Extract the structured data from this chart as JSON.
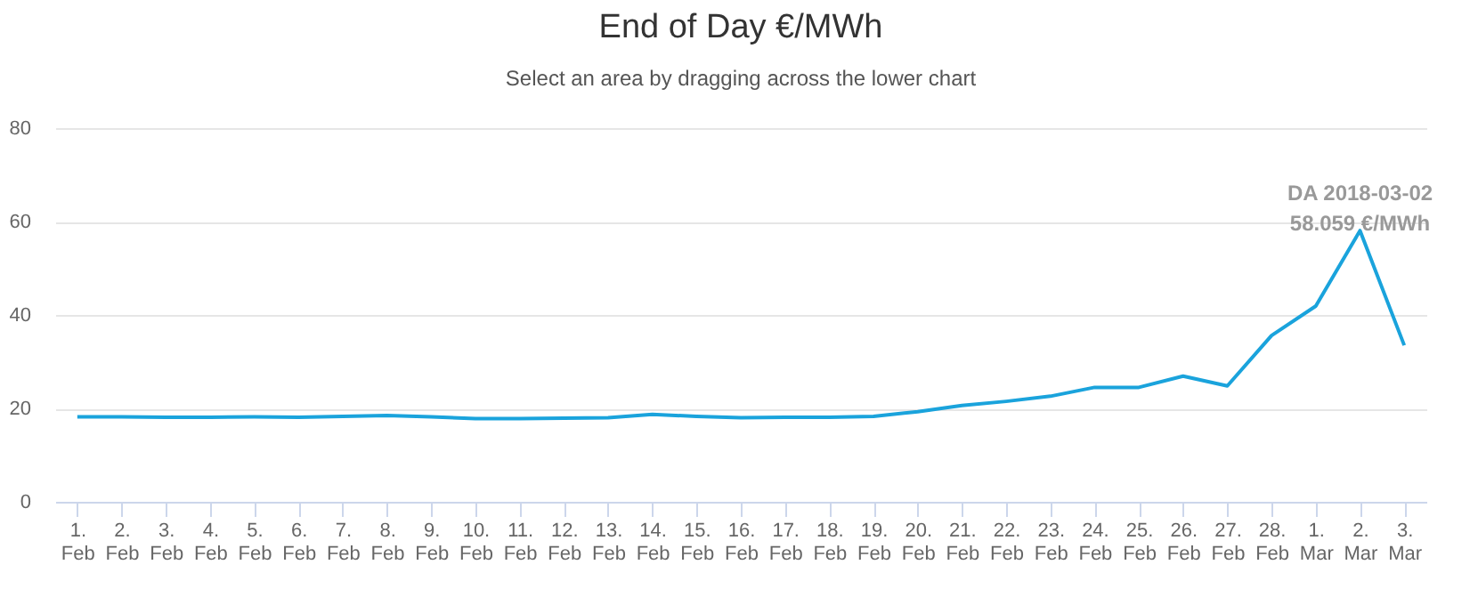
{
  "chart_data": {
    "type": "line",
    "title": "End of Day €/MWh",
    "subtitle": "Select an area by dragging across the lower chart",
    "categories": [
      "1. Feb",
      "2. Feb",
      "3. Feb",
      "4. Feb",
      "5. Feb",
      "6. Feb",
      "7. Feb",
      "8. Feb",
      "9. Feb",
      "10. Feb",
      "11. Feb",
      "12. Feb",
      "13. Feb",
      "14. Feb",
      "15. Feb",
      "16. Feb",
      "17. Feb",
      "18. Feb",
      "19. Feb",
      "20. Feb",
      "21. Feb",
      "22. Feb",
      "23. Feb",
      "24. Feb",
      "25. Feb",
      "26. Feb",
      "27. Feb",
      "28. Feb",
      "1. Mar",
      "2. Mar",
      "3. Mar"
    ],
    "series": [
      {
        "color": "#1aa3dc",
        "values": [
          18.2,
          18.2,
          18.1,
          18.1,
          18.2,
          18.1,
          18.3,
          18.5,
          18.2,
          17.8,
          17.8,
          17.9,
          18.0,
          18.7,
          18.3,
          18.0,
          18.1,
          18.1,
          18.3,
          19.3,
          20.6,
          21.5,
          22.6,
          24.5,
          24.5,
          26.9,
          24.8,
          35.6,
          41.9,
          58.059,
          33.5
        ]
      }
    ],
    "ylim": [
      0,
      80
    ],
    "yticks": [
      0,
      20,
      40,
      60,
      80
    ],
    "grid": "y",
    "annotations": [
      {
        "text": "DA 2018-03-02\n58.059 €/MWh",
        "x": "2. Mar",
        "y": 58.059
      }
    ]
  }
}
